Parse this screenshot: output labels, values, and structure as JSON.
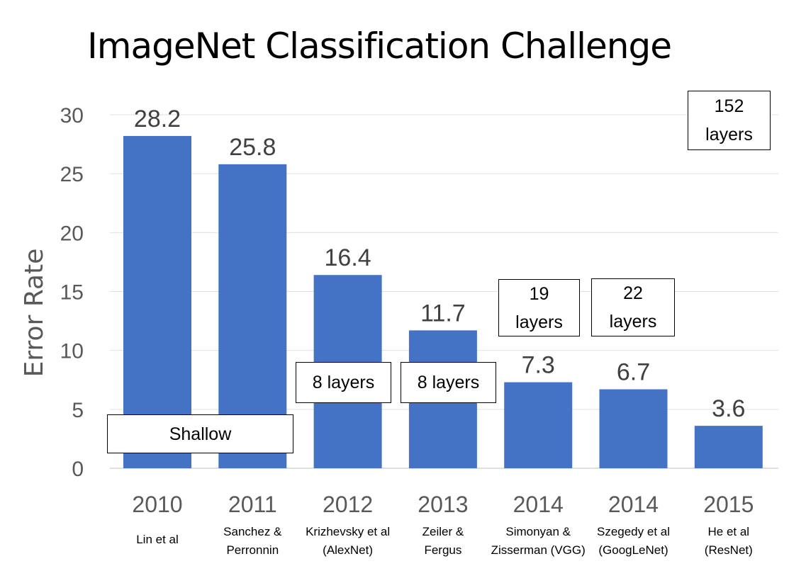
{
  "chart_data": {
    "type": "bar",
    "title": "ImageNet Classification Challenge",
    "ylabel": "Error Rate",
    "xlabel": "",
    "ylim": [
      0,
      30
    ],
    "yticks": [
      0,
      5,
      10,
      15,
      20,
      25,
      30
    ],
    "grid": true,
    "bar_color": "#4472C4",
    "categories": [
      "2010",
      "2011",
      "2012",
      "2013",
      "2014",
      "2014",
      "2015"
    ],
    "sublabels": [
      "Lin et al",
      "Sanchez &\nPerronnin",
      "Krizhevsky et al\n(AlexNet)",
      "Zeiler &\nFergus",
      "Simonyan &\nZisserman (VGG)",
      "Szegedy et al\n(GoogLeNet)",
      "He et al\n(ResNet)"
    ],
    "values": [
      28.2,
      25.8,
      16.4,
      11.7,
      7.3,
      6.7,
      3.6
    ],
    "data_labels": [
      "28.2",
      "25.8",
      "16.4",
      "11.7",
      "7.3",
      "6.7",
      "3.6"
    ],
    "annotations": [
      "Shallow",
      "8 layers",
      "8 layers",
      "19\nlayers",
      "22\nlayers",
      "152\nlayers"
    ]
  }
}
